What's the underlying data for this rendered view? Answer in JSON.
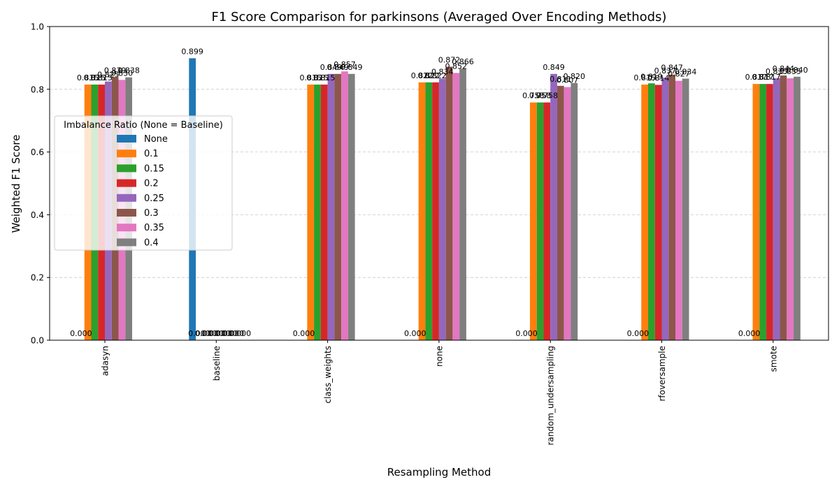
{
  "chart_data": {
    "type": "bar",
    "title": "F1 Score Comparison for parkinsons (Averaged Over Encoding Methods)",
    "xlabel": "Resampling Method",
    "ylabel": "Weighted F1 Score",
    "ylim": [
      0,
      1.0
    ],
    "yticks": [
      "0.0",
      "0.2",
      "0.4",
      "0.6",
      "0.8",
      "1.0"
    ],
    "grid": true,
    "legend_title": "Imbalance Ratio (None = Baseline)",
    "legend_position": "center-left",
    "categories": [
      "adasyn",
      "baseline",
      "class_weights",
      "none",
      "random_undersampling",
      "rfoversample",
      "smote"
    ],
    "series": [
      {
        "name": "None",
        "color": "#1f77b4",
        "values": [
          0.0,
          0.899,
          0.0,
          0.0,
          0.0,
          0.0,
          0.0
        ]
      },
      {
        "name": "0.1",
        "color": "#ff7f0e",
        "values": [
          0.815,
          0.0,
          0.815,
          0.822,
          0.758,
          0.815,
          0.817
        ]
      },
      {
        "name": "0.15",
        "color": "#2ca02c",
        "values": [
          0.815,
          0.0,
          0.815,
          0.822,
          0.758,
          0.819,
          0.817
        ]
      },
      {
        "name": "0.2",
        "color": "#d62728",
        "values": [
          0.815,
          0.0,
          0.815,
          0.822,
          0.758,
          0.814,
          0.817
        ]
      },
      {
        "name": "0.25",
        "color": "#9467bd",
        "values": [
          0.825,
          0.0,
          0.849,
          0.834,
          0.849,
          0.837,
          0.835
        ]
      },
      {
        "name": "0.3",
        "color": "#8c564b",
        "values": [
          0.839,
          0.0,
          0.849,
          0.872,
          0.811,
          0.847,
          0.844
        ]
      },
      {
        "name": "0.35",
        "color": "#e377c2",
        "values": [
          0.83,
          0.0,
          0.857,
          0.852,
          0.807,
          0.827,
          0.835
        ]
      },
      {
        "name": "0.4",
        "color": "#7f7f7f",
        "values": [
          0.838,
          0.0,
          0.849,
          0.866,
          0.82,
          0.834,
          0.84
        ]
      }
    ]
  }
}
